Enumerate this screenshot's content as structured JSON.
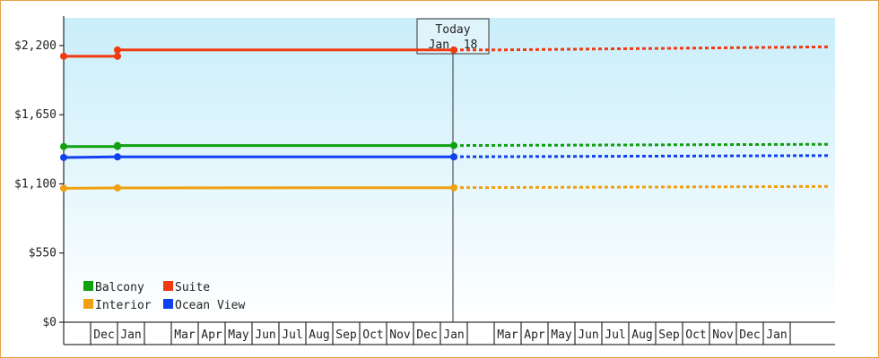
{
  "chart_data": {
    "type": "line",
    "title": "",
    "xlabel": "",
    "ylabel": "",
    "ylim": [
      0,
      2420
    ],
    "yticks": [
      {
        "value": 0,
        "label": "$0"
      },
      {
        "value": 550,
        "label": "$550"
      },
      {
        "value": 1100,
        "label": "$1,100"
      },
      {
        "value": 1650,
        "label": "$1,650"
      },
      {
        "value": 2200,
        "label": "$2,200"
      }
    ],
    "x_axis_months": [
      {
        "label": "",
        "index": 0
      },
      {
        "label": "Dec",
        "index": 1
      },
      {
        "label": "Jan",
        "index": 2
      },
      {
        "label": "",
        "index": 3
      },
      {
        "label": "Mar",
        "index": 4
      },
      {
        "label": "Apr",
        "index": 5
      },
      {
        "label": "May",
        "index": 6
      },
      {
        "label": "Jun",
        "index": 7
      },
      {
        "label": "Jul",
        "index": 8
      },
      {
        "label": "Aug",
        "index": 9
      },
      {
        "label": "Sep",
        "index": 10
      },
      {
        "label": "Oct",
        "index": 11
      },
      {
        "label": "Nov",
        "index": 12
      },
      {
        "label": "Dec",
        "index": 13
      },
      {
        "label": "Jan",
        "index": 14
      },
      {
        "label": "",
        "index": 15
      },
      {
        "label": "Mar",
        "index": 16
      },
      {
        "label": "Apr",
        "index": 17
      },
      {
        "label": "May",
        "index": 18
      },
      {
        "label": "Jun",
        "index": 19
      },
      {
        "label": "Jul",
        "index": 20
      },
      {
        "label": "Aug",
        "index": 21
      },
      {
        "label": "Sep",
        "index": 22
      },
      {
        "label": "Oct",
        "index": 23
      },
      {
        "label": "Nov",
        "index": 24
      },
      {
        "label": "Dec",
        "index": 25
      },
      {
        "label": "Jan",
        "index": 26
      },
      {
        "label": "",
        "index": 27
      }
    ],
    "today": {
      "line1": "Today",
      "line2": "Jan. 18",
      "x": 14.5
    },
    "x_range": [
      0,
      28.5
    ],
    "series": [
      {
        "name": "Suite",
        "color": "#f03a10",
        "history": [
          [
            0,
            2115
          ],
          [
            2,
            2115
          ],
          [
            2,
            2165
          ],
          [
            14.5,
            2165
          ]
        ],
        "markers": [
          [
            0,
            2115
          ],
          [
            2,
            2115
          ],
          [
            2,
            2165
          ],
          [
            14.5,
            2165
          ]
        ],
        "forecast": [
          [
            14.5,
            2165
          ],
          [
            16,
            2165
          ],
          [
            28.5,
            2190
          ]
        ]
      },
      {
        "name": "Balcony",
        "color": "#10a010",
        "history": [
          [
            0,
            1397
          ],
          [
            2,
            1397
          ],
          [
            2,
            1405
          ],
          [
            14.5,
            1405
          ]
        ],
        "markers": [
          [
            0,
            1397
          ],
          [
            2,
            1397
          ],
          [
            2,
            1405
          ],
          [
            14.5,
            1405
          ]
        ],
        "forecast": [
          [
            14.5,
            1405
          ],
          [
            28.5,
            1415
          ]
        ]
      },
      {
        "name": "Ocean View",
        "color": "#1040f0",
        "history": [
          [
            0,
            1310
          ],
          [
            2,
            1315
          ],
          [
            14.5,
            1315
          ]
        ],
        "markers": [
          [
            0,
            1310
          ],
          [
            2,
            1315
          ],
          [
            14.5,
            1315
          ]
        ],
        "forecast": [
          [
            14.5,
            1315
          ],
          [
            28.5,
            1325
          ]
        ]
      },
      {
        "name": "Interior",
        "color": "#f0a010",
        "history": [
          [
            0,
            1065
          ],
          [
            2,
            1068
          ],
          [
            14.5,
            1070
          ]
        ],
        "markers": [
          [
            0,
            1065
          ],
          [
            2,
            1068
          ],
          [
            14.5,
            1070
          ]
        ],
        "forecast": [
          [
            14.5,
            1070
          ],
          [
            28.5,
            1080
          ]
        ]
      }
    ],
    "legend": {
      "placement": "bottom-left",
      "rows": [
        [
          "Balcony",
          "Suite"
        ],
        [
          "Interior",
          "Ocean View"
        ]
      ]
    },
    "background": {
      "top": "#c9eefa",
      "bottom": "#ffffff"
    },
    "grid": false
  }
}
